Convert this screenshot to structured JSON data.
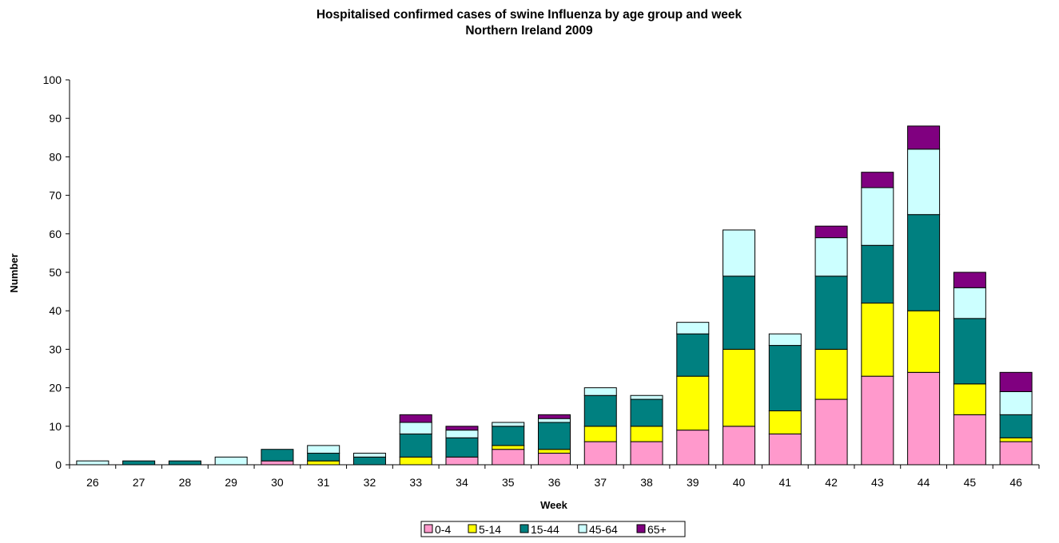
{
  "chart_data": {
    "type": "bar",
    "stacked": true,
    "title": "Hospitalised confirmed cases of swine Influenza by age group and week",
    "subtitle": "Northern Ireland 2009",
    "xlabel": "Week",
    "ylabel": "Number",
    "ylim": [
      0,
      100
    ],
    "yticks": [
      "0",
      "10",
      "20",
      "30",
      "40",
      "50",
      "60",
      "70",
      "80",
      "90",
      "100"
    ],
    "grid": false,
    "legend_position": "bottom",
    "categories": [
      "26",
      "27",
      "28",
      "29",
      "30",
      "31",
      "32",
      "33",
      "34",
      "35",
      "36",
      "37",
      "38",
      "39",
      "40",
      "41",
      "42",
      "43",
      "44",
      "45",
      "46"
    ],
    "series": [
      {
        "name": "0-4",
        "color": "#FF99CC",
        "values": [
          0,
          0,
          0,
          0,
          1,
          0,
          0,
          0,
          2,
          4,
          3,
          6,
          6,
          9,
          10,
          8,
          17,
          23,
          24,
          13,
          6
        ]
      },
      {
        "name": "5-14",
        "color": "#FFFF00",
        "values": [
          0,
          0,
          0,
          0,
          0,
          1,
          0,
          2,
          0,
          1,
          1,
          4,
          4,
          14,
          20,
          6,
          13,
          19,
          16,
          8,
          1
        ]
      },
      {
        "name": "15-44",
        "color": "#008080",
        "values": [
          0,
          1,
          1,
          0,
          3,
          2,
          2,
          6,
          5,
          5,
          7,
          8,
          7,
          11,
          19,
          17,
          19,
          15,
          25,
          17,
          6
        ]
      },
      {
        "name": "45-64",
        "color": "#CCFFFF",
        "values": [
          1,
          0,
          0,
          2,
          0,
          2,
          1,
          3,
          2,
          1,
          1,
          2,
          1,
          3,
          12,
          3,
          10,
          15,
          17,
          8,
          6
        ]
      },
      {
        "name": "65+",
        "color": "#800080",
        "values": [
          0,
          0,
          0,
          0,
          0,
          0,
          0,
          2,
          1,
          0,
          1,
          0,
          0,
          0,
          0,
          0,
          3,
          4,
          6,
          4,
          5
        ]
      }
    ]
  }
}
